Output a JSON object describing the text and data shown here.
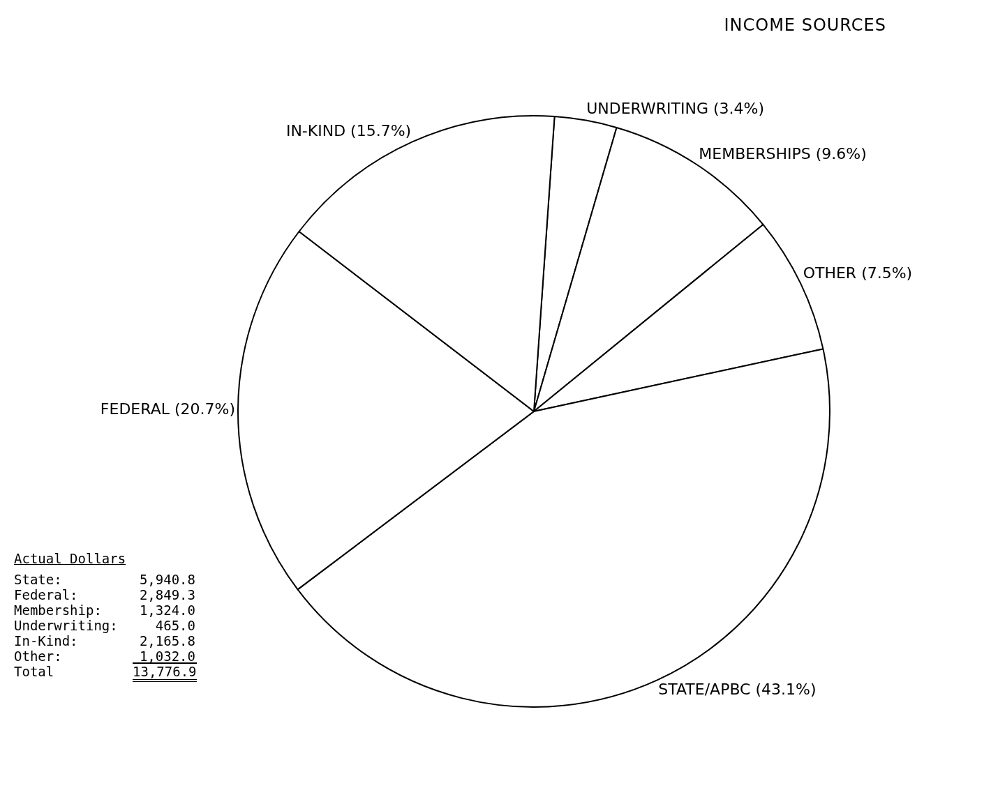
{
  "chart_data": {
    "type": "pie",
    "title": "INCOME SOURCES",
    "categories": [
      "UNDERWRITING",
      "MEMBERSHIPS",
      "OTHER",
      "STATE/APBC",
      "FEDERAL",
      "IN-KIND"
    ],
    "values": [
      3.4,
      9.6,
      7.5,
      43.1,
      20.7,
      15.7
    ],
    "value_labels": [
      "(3.4%)",
      "(9.6%)",
      "(7.5%)",
      "(43.1%)",
      "(20.7%)",
      "(15.7%)"
    ],
    "colors": [
      "#ffffff",
      "#ffffff",
      "#ffffff",
      "#ffffff",
      "#ffffff",
      "#ffffff"
    ],
    "annotations": [
      "Actual Dollars",
      "State:",
      "5,940.8",
      "Federal:",
      "2,849.3",
      "Membership:",
      "1,324.0",
      "Underwriting:",
      "465.0",
      "In-Kind:",
      "2,165.8",
      "Other:",
      "1,032.0",
      "Total",
      "13,776.9"
    ]
  }
}
